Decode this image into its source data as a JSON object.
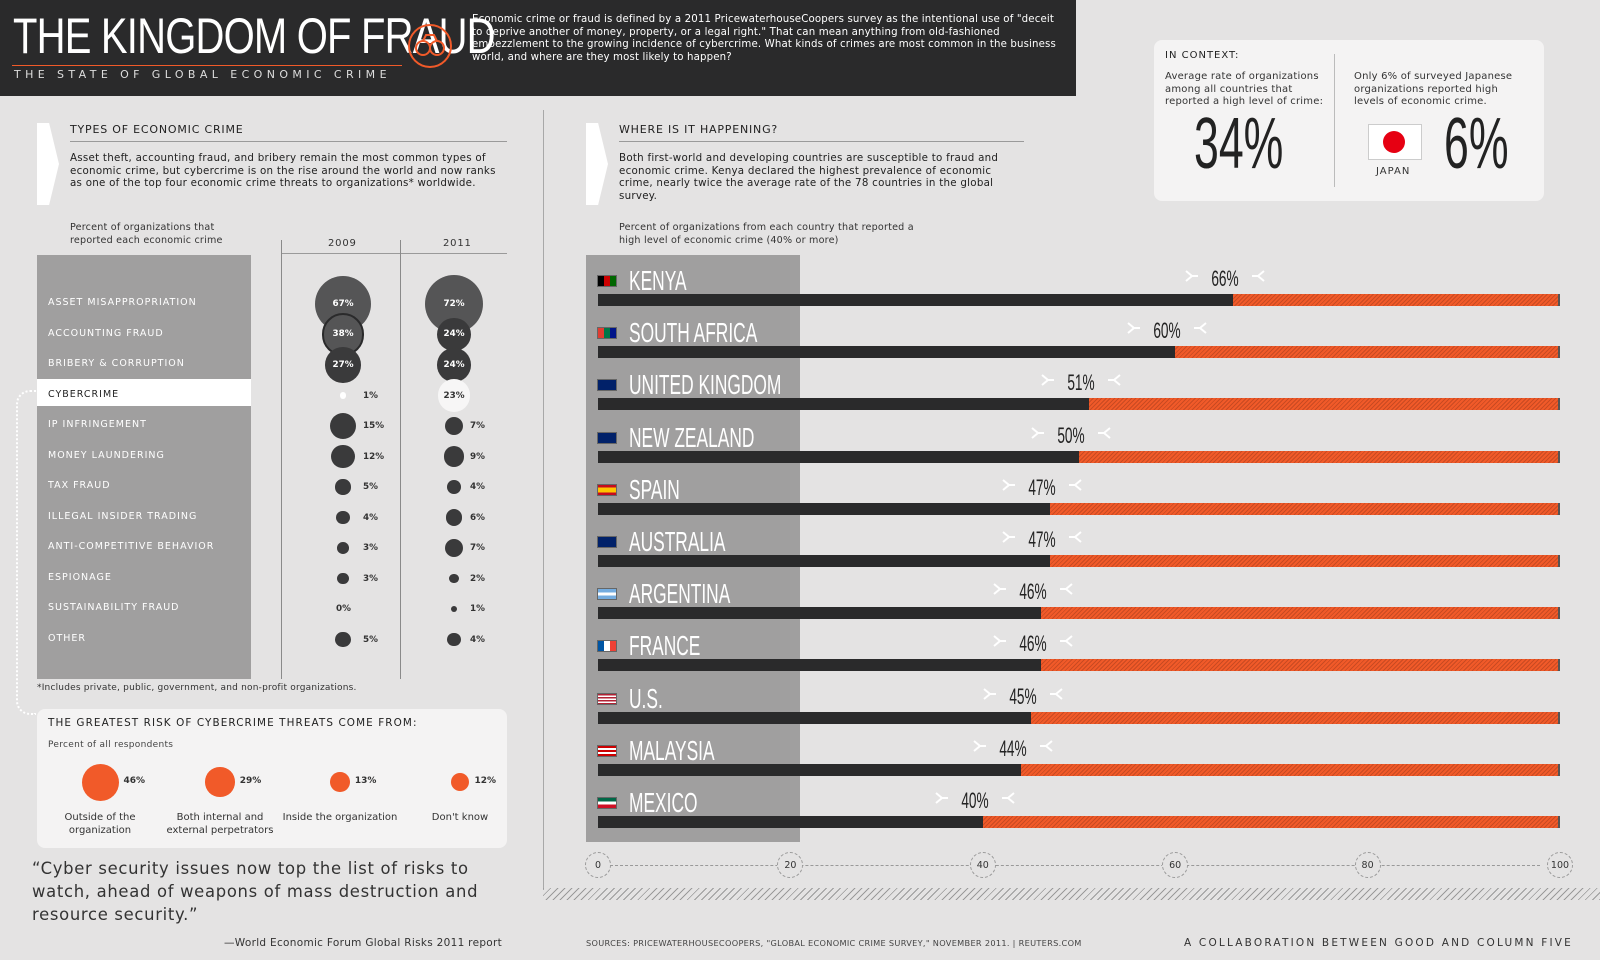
{
  "header": {
    "title": "THE KINGDOM OF FRAUD",
    "subtitle": "THE STATE OF GLOBAL ECONOMIC CRIME",
    "intro": "Economic crime or fraud is defined by a 2011 PricewaterhouseCoopers survey as the intentional use of \"deceit to deprive another of money, property, or a legal right.\" That can mean anything from old-fashioned embezzlement to the growing incidence of cybercrime. What kinds of crimes are most common in the business world, and where are they most likely to happen?"
  },
  "types_section": {
    "title": "TYPES OF ECONOMIC CRIME",
    "text": "Asset theft, accounting fraud, and bribery remain the most common types of economic crime, but cybercrime is on the rise around the world and now ranks as one of the top four economic crime threats to organizations* worldwide.",
    "caption": "Percent of organizations that reported each economic crime",
    "footnote": "*Includes private, public, government, and non-profit organizations."
  },
  "where_section": {
    "title": "WHERE IS IT HAPPENING?",
    "text": "Both first-world and developing countries are susceptible to fraud and economic crime. Kenya declared the highest prevalence of economic crime, nearly twice the average rate of the 78 countries in the global survey.",
    "caption": "Percent of organizations from each country that reported a high level of economic crime (40% or more)"
  },
  "context": {
    "title": "IN CONTEXT:",
    "left_text": "Average rate of organizations among all countries that reported a high level of crime:",
    "left_value": "34%",
    "right_text": "Only 6% of surveyed Japanese organizations reported high levels of economic crime.",
    "right_value": "6%",
    "flag_label": "JAPAN"
  },
  "cyber_threats": {
    "title": "THE GREATEST RISK OF CYBERCRIME THREATS COME FROM:",
    "subtitle": "Percent of all respondents"
  },
  "quote": {
    "text": "“Cyber security issues now top the list of risks to watch, ahead of weapons of mass destruction and resource security.”",
    "source": "—World Economic Forum Global Risks 2011 report"
  },
  "footer": {
    "sources": "SOURCES: PRICEWATERHOUSECOOPERS, \"GLOBAL ECONOMIC CRIME SURVEY,\" NOVEMBER 2011. | REUTERS.COM",
    "collab": "A COLLABORATION BETWEEN GOOD AND COLUMN FIVE"
  },
  "colors": {
    "accent": "#f15a29",
    "dark": "#2a2a2b",
    "panel": "#a09f9f",
    "background": "#e4e3e3"
  },
  "chart_data": [
    {
      "type": "bubble",
      "title": "TYPES OF ECONOMIC CRIME",
      "series": [
        {
          "name": "2009"
        },
        {
          "name": "2011"
        }
      ],
      "categories": [
        "ASSET MISAPPROPRIATION",
        "ACCOUNTING FRAUD",
        "BRIBERY & CORRUPTION",
        "CYBERCRIME",
        "IP INFRINGEMENT",
        "MONEY LAUNDERING",
        "TAX FRAUD",
        "ILLEGAL INSIDER TRADING",
        "ANTI-COMPETITIVE BEHAVIOR",
        "ESPIONAGE",
        "SUSTAINABILITY FRAUD",
        "OTHER"
      ],
      "values_2009": [
        67,
        38,
        27,
        1,
        15,
        12,
        5,
        4,
        3,
        3,
        0,
        5
      ],
      "values_2011": [
        72,
        24,
        24,
        23,
        7,
        9,
        4,
        6,
        7,
        2,
        1,
        4
      ],
      "unit": "%",
      "highlight": "CYBERCRIME"
    },
    {
      "type": "bar",
      "title": "WHERE IS IT HAPPENING?",
      "categories": [
        "KENYA",
        "SOUTH AFRICA",
        "UNITED KINGDOM",
        "NEW ZEALAND",
        "SPAIN",
        "AUSTRALIA",
        "ARGENTINA",
        "FRANCE",
        "U.S.",
        "MALAYSIA",
        "MEXICO"
      ],
      "values": [
        66,
        60,
        51,
        50,
        47,
        47,
        46,
        46,
        45,
        44,
        40
      ],
      "unit": "%",
      "xlim": [
        0,
        100
      ],
      "xticks": [
        "0",
        "20",
        "40",
        "60",
        "80",
        "100"
      ]
    },
    {
      "type": "bubble",
      "title": "THE GREATEST RISK OF CYBERCRIME THREATS COME FROM:",
      "categories": [
        "Outside of the organization",
        "Both internal and external perpetrators",
        "Inside the organization",
        "Don't know"
      ],
      "values": [
        46,
        29,
        13,
        12
      ],
      "unit": "%"
    }
  ]
}
